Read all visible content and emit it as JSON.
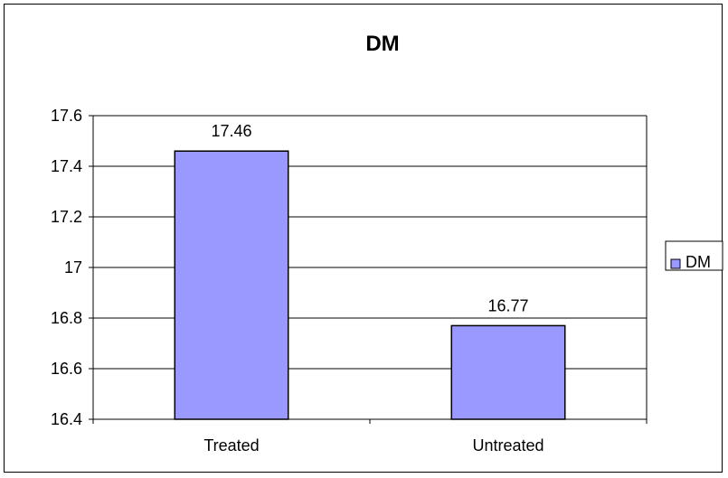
{
  "chart_data": {
    "type": "bar",
    "title": "DM",
    "categories": [
      "Treated",
      "Untreated"
    ],
    "series": [
      {
        "name": "DM",
        "values": [
          17.46,
          16.77
        ],
        "color": "#9999FF"
      }
    ],
    "data_labels": [
      "17.46",
      "16.77"
    ],
    "y_ticks": [
      "16.4",
      "16.6",
      "16.8",
      "17",
      "17.2",
      "17.4",
      "17.6"
    ],
    "ylim": [
      16.4,
      17.6
    ],
    "grid": true,
    "legend_position": "right"
  }
}
